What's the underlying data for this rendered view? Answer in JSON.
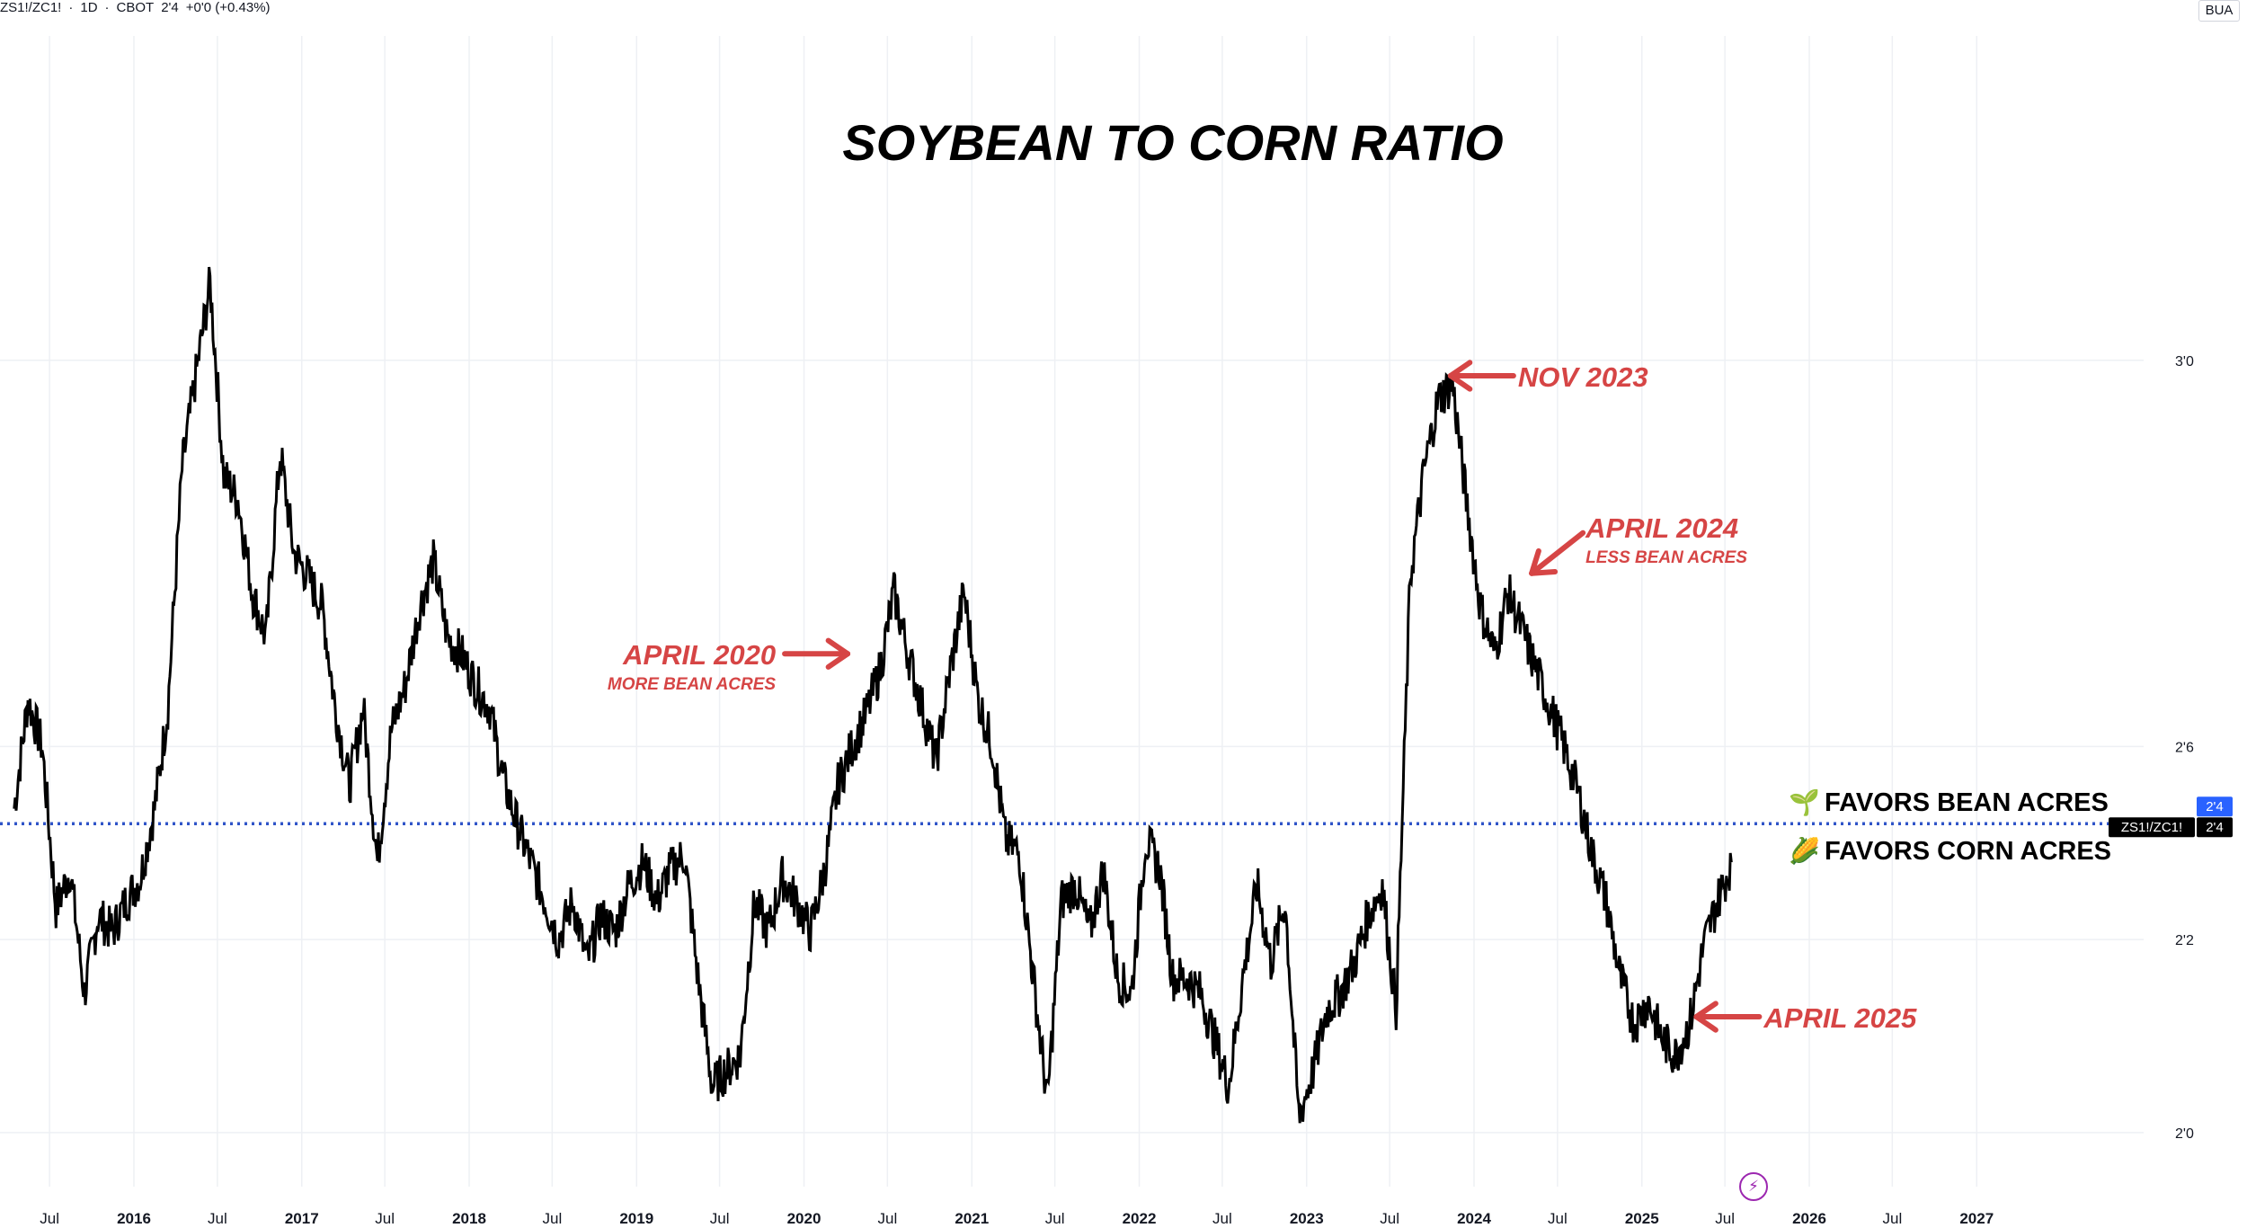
{
  "header": {
    "symbol": "ZS1!/ZC1!",
    "interval": "1D",
    "exchange": "CBOT",
    "last": "2'4",
    "change": "+0'0 (+0.43%)",
    "right_button": "BUA"
  },
  "chart_data": {
    "type": "line",
    "title": "SOYBEAN TO CORN RATIO",
    "series": [
      {
        "name": "ZS1!/ZC1!",
        "color": "#000000",
        "x": [
          "2015-04",
          "2015-05",
          "2015-06",
          "2015-07",
          "2015-08",
          "2015-09",
          "2015-10",
          "2015-11",
          "2015-12",
          "2016-01",
          "2016-02",
          "2016-03",
          "2016-04",
          "2016-05",
          "2016-06",
          "2016-07",
          "2016-08",
          "2016-09",
          "2016-10",
          "2016-11",
          "2016-12",
          "2017-01",
          "2017-02",
          "2017-03",
          "2017-04",
          "2017-05",
          "2017-06",
          "2017-07",
          "2017-08",
          "2017-09",
          "2017-10",
          "2017-11",
          "2017-12",
          "2018-01",
          "2018-02",
          "2018-03",
          "2018-04",
          "2018-05",
          "2018-06",
          "2018-07",
          "2018-08",
          "2018-09",
          "2018-10",
          "2018-11",
          "2018-12",
          "2019-01",
          "2019-02",
          "2019-03",
          "2019-04",
          "2019-05",
          "2019-06",
          "2019-07",
          "2019-08",
          "2019-09",
          "2019-10",
          "2019-11",
          "2019-12",
          "2020-01",
          "2020-02",
          "2020-03",
          "2020-04",
          "2020-05",
          "2020-06",
          "2020-07",
          "2020-08",
          "2020-09",
          "2020-10",
          "2020-11",
          "2020-12",
          "2021-01",
          "2021-02",
          "2021-03",
          "2021-04",
          "2021-05",
          "2021-06",
          "2021-07",
          "2021-08",
          "2021-09",
          "2021-10",
          "2021-11",
          "2021-12",
          "2022-01",
          "2022-02",
          "2022-03",
          "2022-04",
          "2022-05",
          "2022-06",
          "2022-07",
          "2022-08",
          "2022-09",
          "2022-10",
          "2022-11",
          "2022-12",
          "2023-01",
          "2023-02",
          "2023-03",
          "2023-04",
          "2023-05",
          "2023-06",
          "2023-07",
          "2023-08",
          "2023-09",
          "2023-10",
          "2023-11",
          "2023-12",
          "2024-01",
          "2024-02",
          "2024-03",
          "2024-04",
          "2024-05",
          "2024-06",
          "2024-07",
          "2024-08",
          "2024-09",
          "2024-10",
          "2024-11",
          "2024-12",
          "2025-01",
          "2025-02",
          "2025-03",
          "2025-04",
          "2025-05",
          "2025-06",
          "2025-07"
        ],
        "y": [
          2.42,
          2.56,
          2.5,
          2.29,
          2.34,
          2.18,
          2.28,
          2.26,
          2.3,
          2.33,
          2.42,
          2.55,
          2.86,
          2.98,
          3.1,
          2.85,
          2.82,
          2.7,
          2.64,
          2.88,
          2.75,
          2.72,
          2.68,
          2.55,
          2.45,
          2.55,
          2.35,
          2.52,
          2.58,
          2.68,
          2.74,
          2.64,
          2.62,
          2.58,
          2.55,
          2.46,
          2.4,
          2.35,
          2.3,
          2.25,
          2.3,
          2.22,
          2.28,
          2.26,
          2.32,
          2.35,
          2.3,
          2.34,
          2.36,
          2.2,
          2.06,
          2.08,
          2.1,
          2.3,
          2.26,
          2.33,
          2.3,
          2.26,
          2.34,
          2.45,
          2.5,
          2.54,
          2.6,
          2.7,
          2.62,
          2.55,
          2.48,
          2.6,
          2.7,
          2.56,
          2.5,
          2.38,
          2.36,
          2.2,
          2.04,
          2.3,
          2.32,
          2.26,
          2.34,
          2.2,
          2.18,
          2.38,
          2.34,
          2.2,
          2.2,
          2.18,
          2.12,
          2.06,
          2.2,
          2.32,
          2.22,
          2.3,
          2.02,
          2.08,
          2.16,
          2.18,
          2.22,
          2.28,
          2.32,
          2.16,
          2.72,
          2.86,
          2.95,
          2.97,
          2.82,
          2.68,
          2.62,
          2.7,
          2.65,
          2.6,
          2.55,
          2.5,
          2.44,
          2.36,
          2.3,
          2.2,
          2.14,
          2.17,
          2.12,
          2.1,
          2.14,
          2.24,
          2.3,
          2.35
        ]
      }
    ],
    "xlim": [
      "2015-03-15",
      "2027-12-31"
    ],
    "ylim": [
      1.93,
      3.42
    ],
    "y_ticks": [
      {
        "value": 2.0,
        "label": "2'0"
      },
      {
        "value": 2.25,
        "label": "2'2"
      },
      {
        "value": 2.5,
        "label": "2'6"
      },
      {
        "value": 3.0,
        "label": "3'0"
      }
    ],
    "x_ticks": [
      {
        "date": "2015-07-01",
        "label": "Jul",
        "bold": false
      },
      {
        "date": "2016-01-01",
        "label": "2016",
        "bold": true
      },
      {
        "date": "2016-07-01",
        "label": "Jul",
        "bold": false
      },
      {
        "date": "2017-01-01",
        "label": "2017",
        "bold": true
      },
      {
        "date": "2017-07-01",
        "label": "Jul",
        "bold": false
      },
      {
        "date": "2018-01-01",
        "label": "2018",
        "bold": true
      },
      {
        "date": "2018-07-01",
        "label": "Jul",
        "bold": false
      },
      {
        "date": "2019-01-01",
        "label": "2019",
        "bold": true
      },
      {
        "date": "2019-07-01",
        "label": "Jul",
        "bold": false
      },
      {
        "date": "2020-01-01",
        "label": "2020",
        "bold": true
      },
      {
        "date": "2020-07-01",
        "label": "Jul",
        "bold": false
      },
      {
        "date": "2021-01-01",
        "label": "2021",
        "bold": true
      },
      {
        "date": "2021-07-01",
        "label": "Jul",
        "bold": false
      },
      {
        "date": "2022-01-01",
        "label": "2022",
        "bold": true
      },
      {
        "date": "2022-07-01",
        "label": "Jul",
        "bold": false
      },
      {
        "date": "2023-01-01",
        "label": "2023",
        "bold": true
      },
      {
        "date": "2023-07-01",
        "label": "Jul",
        "bold": false
      },
      {
        "date": "2024-01-01",
        "label": "2024",
        "bold": true
      },
      {
        "date": "2024-07-01",
        "label": "Jul",
        "bold": false
      },
      {
        "date": "2025-01-01",
        "label": "2025",
        "bold": true
      },
      {
        "date": "2025-07-01",
        "label": "Jul",
        "bold": false
      },
      {
        "date": "2026-01-01",
        "label": "2026",
        "bold": true
      },
      {
        "date": "2026-07-01",
        "label": "Jul",
        "bold": false
      },
      {
        "date": "2027-01-01",
        "label": "2027",
        "bold": true
      }
    ],
    "reference_line": {
      "value": 2.4,
      "style": "dotted",
      "color": "#2f54c8"
    },
    "price_tags": {
      "upper": "2'4",
      "series_label": "ZS1!/ZC1!",
      "lower": "2'4"
    },
    "annotations": [
      {
        "text": "NOV 2023",
        "x": "2023-11-01",
        "y": 2.98,
        "arrow": "from-right"
      },
      {
        "text": "APRIL 2024",
        "subtext": "LESS BEAN ACRES",
        "x": "2024-04-20",
        "y": 2.73,
        "arrow": "from-upper-right"
      },
      {
        "text": "APRIL 2020",
        "subtext": "MORE BEAN ACRES",
        "x": "2020-04-15",
        "y": 2.62,
        "arrow": "from-left"
      },
      {
        "text": "APRIL 2025",
        "x": "2025-04-20",
        "y": 2.15,
        "arrow": "from-right"
      }
    ],
    "zone_labels": [
      {
        "text": "FAVORS BEAN ACRES",
        "icon": "seedling-icon",
        "position": "above"
      },
      {
        "text": "FAVORS CORN ACRES",
        "icon": "corn-icon",
        "position": "below"
      }
    ],
    "grid": true,
    "legend": "none",
    "colors": {
      "annotation": "#d64545",
      "line": "#000000",
      "reference": "#2f54c8",
      "grid": "#eef0f4"
    }
  }
}
